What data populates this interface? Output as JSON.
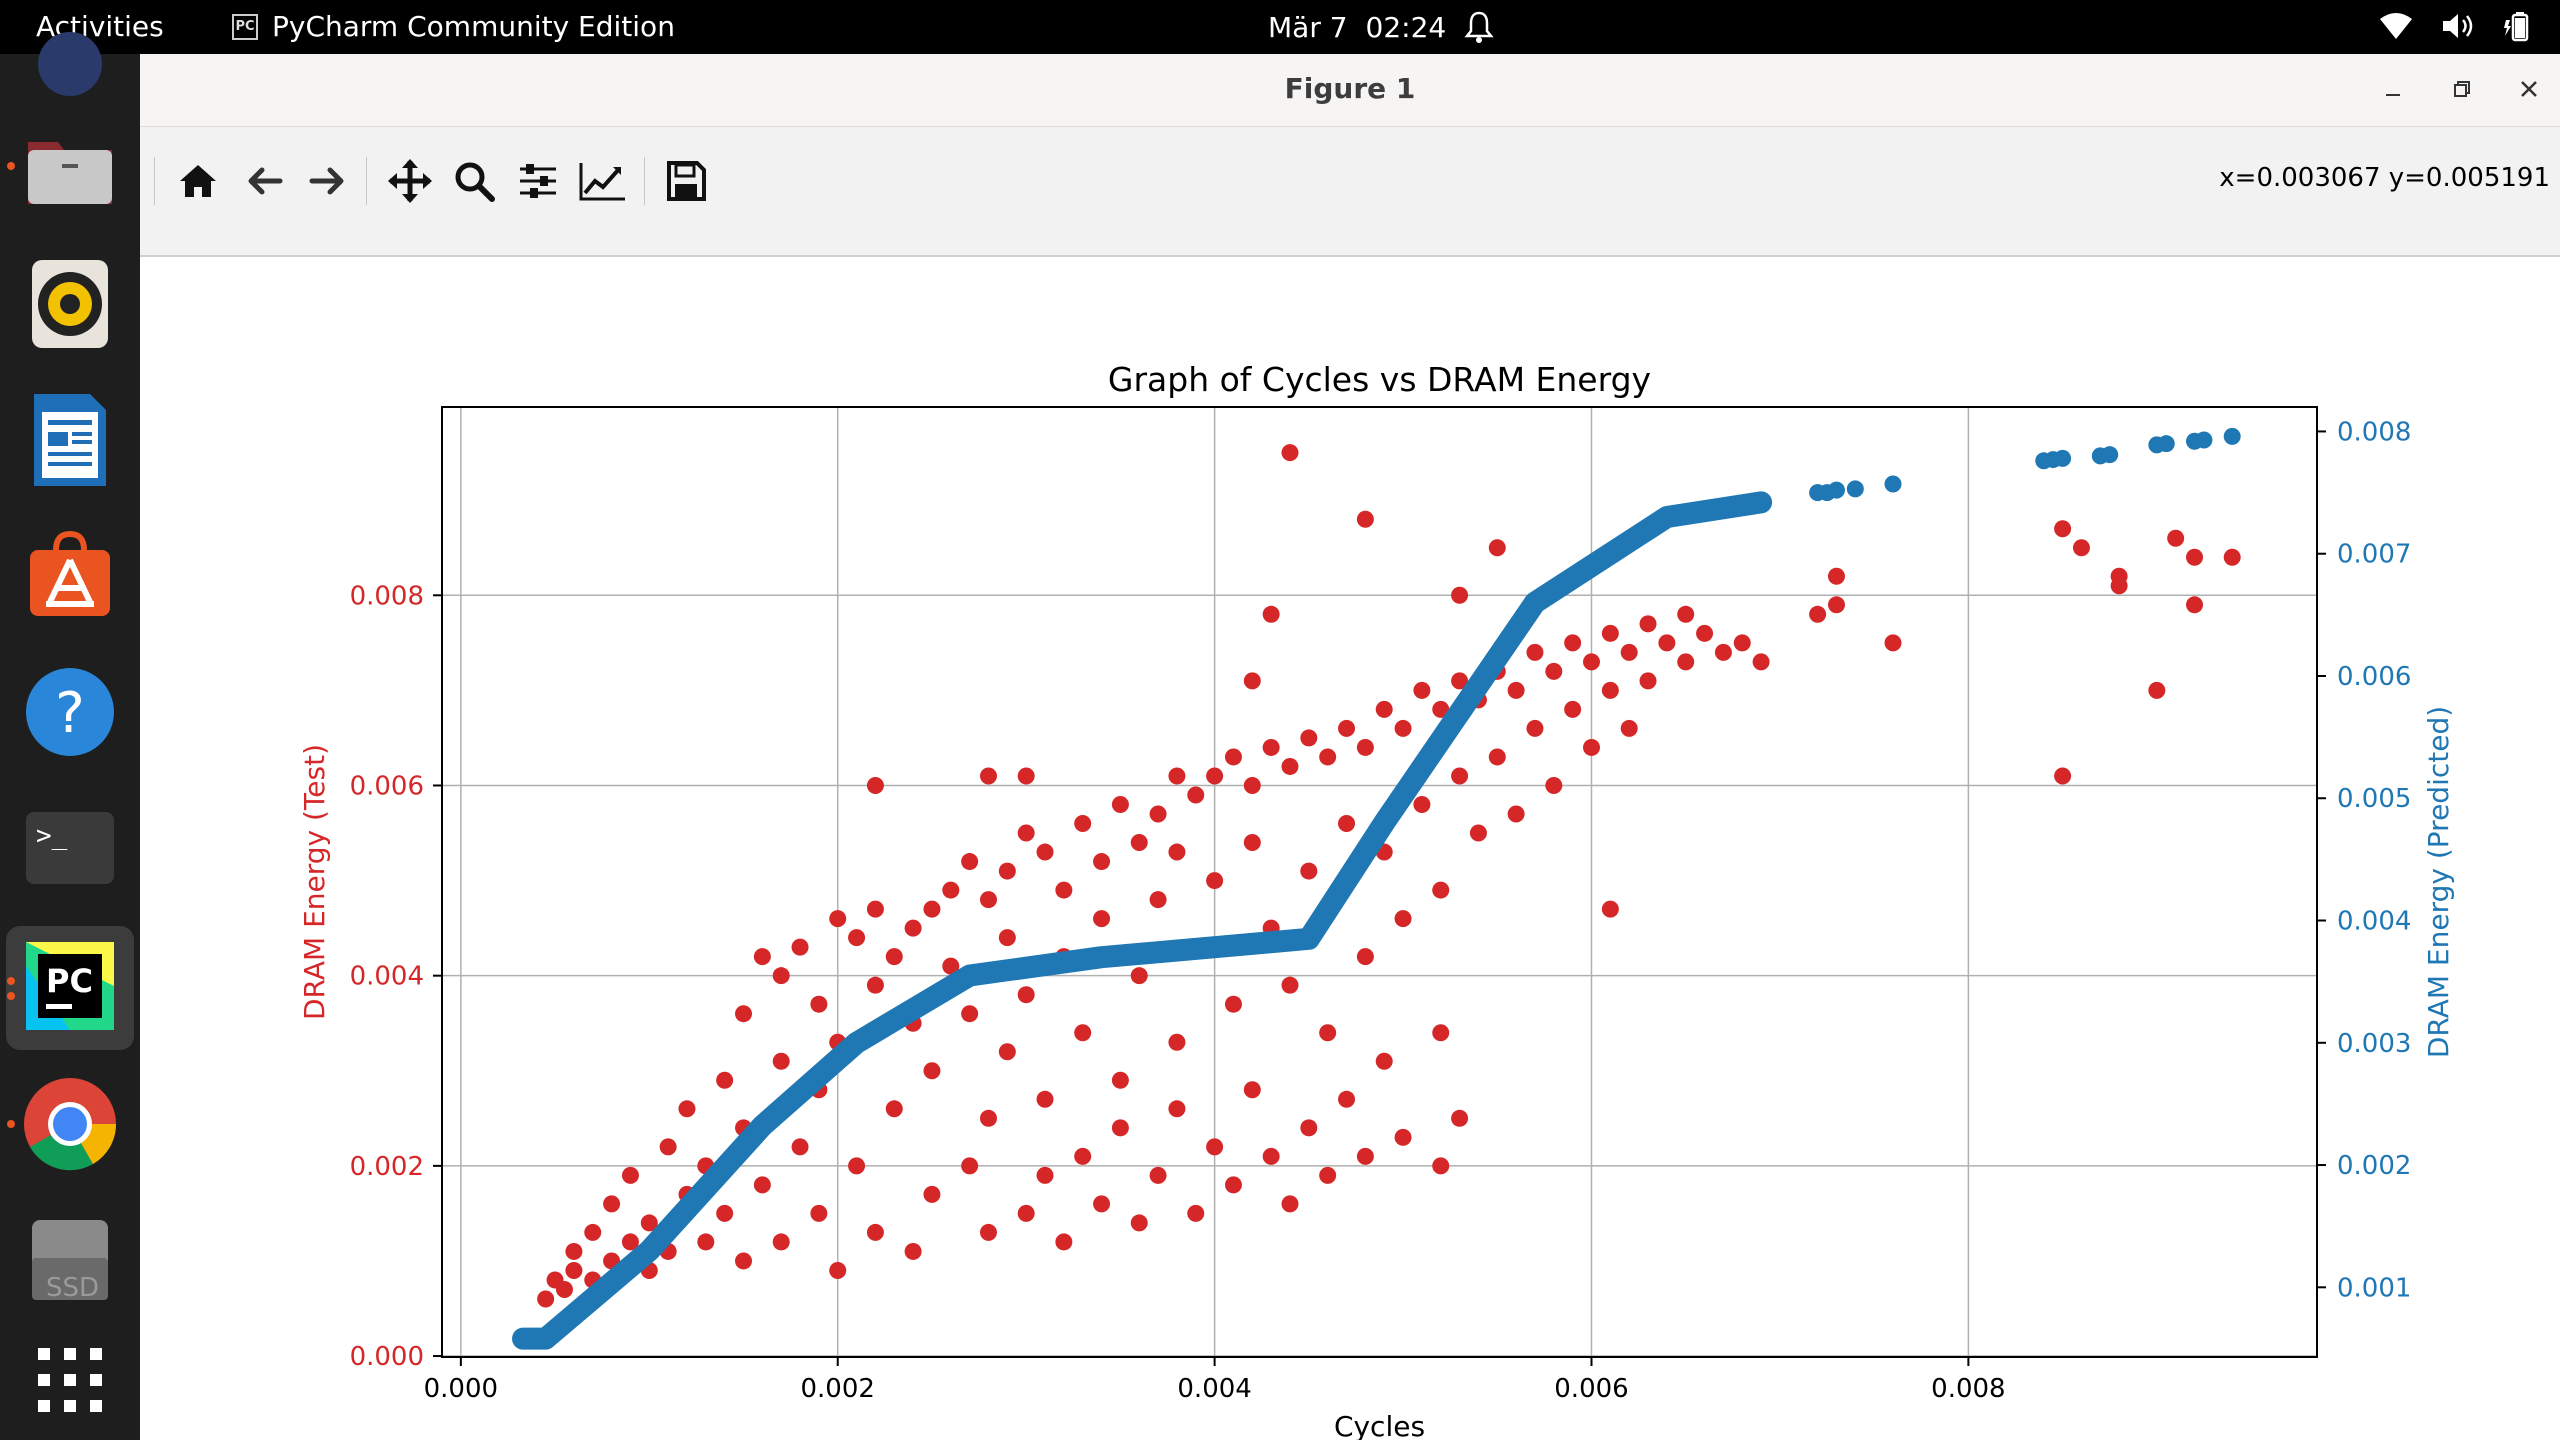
{
  "topbar": {
    "activities": "Activities",
    "app_name": "PyCharm Community Edition",
    "app_icon_text": "PC",
    "date": "Mär 7",
    "time": "02:24"
  },
  "dock": {
    "items": [
      {
        "name": "files",
        "icon": "folder-icon"
      },
      {
        "name": "rhythmbox",
        "icon": "speaker-icon"
      },
      {
        "name": "libreoffice-writer",
        "icon": "document-icon"
      },
      {
        "name": "app-center",
        "icon": "store-icon"
      },
      {
        "name": "help",
        "icon": "help-icon",
        "label": "?"
      },
      {
        "name": "terminal",
        "icon": "terminal-icon",
        "label": ">_"
      },
      {
        "name": "pycharm",
        "icon": "pycharm-icon",
        "label": "PC"
      },
      {
        "name": "chrome",
        "icon": "chrome-icon"
      },
      {
        "name": "ssd",
        "icon": "drive-icon",
        "label": "SSD"
      },
      {
        "name": "show-apps",
        "icon": "grid-icon"
      }
    ]
  },
  "window": {
    "title": "Figure 1",
    "coords": "x=0.003067 y=0.005191"
  },
  "toolbar": {
    "buttons": [
      "home-icon",
      "back-icon",
      "forward-icon",
      "pan-icon",
      "zoom-icon",
      "configure-icon",
      "edit-axis-icon",
      "save-icon"
    ]
  },
  "colors": {
    "test": "#d62728",
    "predicted": "#1f77b4",
    "grid": "#b0b0b0",
    "toolbar": "#f2f2f2",
    "dock": "#1e1e1e",
    "accent": "#e95420"
  },
  "chart_data": {
    "type": "scatter",
    "title": "Graph of Cycles vs DRAM Energy",
    "xlabel": "Cycles",
    "ylabel": "DRAM Energy (Test)",
    "ylabel_right": "DRAM Energy (Predicted)",
    "xlim": [
      -0.0001,
      0.00985
    ],
    "ylim": [
      -1e-05,
      0.00998
    ],
    "ylim_right": [
      0.00043,
      0.0082
    ],
    "xticks": [
      "0.000",
      "0.002",
      "0.004",
      "0.006",
      "0.008"
    ],
    "xtick_values": [
      0,
      0.002,
      0.004,
      0.006,
      0.008
    ],
    "yticks_left": [
      "0.000",
      "0.002",
      "0.004",
      "0.006",
      "0.008"
    ],
    "ytick_values_left": [
      0,
      0.002,
      0.004,
      0.006,
      0.008
    ],
    "yticks_right": [
      "0.001",
      "0.002",
      "0.003",
      "0.004",
      "0.005",
      "0.006",
      "0.007",
      "0.008"
    ],
    "ytick_values_right": [
      0.001,
      0.002,
      0.003,
      0.004,
      0.005,
      0.006,
      0.007,
      0.008
    ],
    "grid": true,
    "series": [
      {
        "name": "DRAM Energy (Test)",
        "axis": "left",
        "points": [
          [
            0.00045,
            0.0006
          ],
          [
            0.0005,
            0.0008
          ],
          [
            0.00055,
            0.0007
          ],
          [
            0.0006,
            0.0009
          ],
          [
            0.0006,
            0.0011
          ],
          [
            0.0007,
            0.0008
          ],
          [
            0.0007,
            0.0013
          ],
          [
            0.0008,
            0.001
          ],
          [
            0.0008,
            0.0016
          ],
          [
            0.0009,
            0.0012
          ],
          [
            0.0009,
            0.0019
          ],
          [
            0.001,
            0.0009
          ],
          [
            0.001,
            0.0014
          ],
          [
            0.0011,
            0.0022
          ],
          [
            0.0011,
            0.0011
          ],
          [
            0.0012,
            0.0017
          ],
          [
            0.0012,
            0.0026
          ],
          [
            0.0013,
            0.0012
          ],
          [
            0.0013,
            0.002
          ],
          [
            0.0014,
            0.0029
          ],
          [
            0.0014,
            0.0015
          ],
          [
            0.0015,
            0.0036
          ],
          [
            0.0015,
            0.0024
          ],
          [
            0.0015,
            0.001
          ],
          [
            0.0016,
            0.0042
          ],
          [
            0.0016,
            0.0018
          ],
          [
            0.0017,
            0.0031
          ],
          [
            0.0017,
            0.004
          ],
          [
            0.0017,
            0.0012
          ],
          [
            0.0018,
            0.0043
          ],
          [
            0.0018,
            0.0022
          ],
          [
            0.0019,
            0.0037
          ],
          [
            0.0019,
            0.0028
          ],
          [
            0.0019,
            0.0015
          ],
          [
            0.002,
            0.0046
          ],
          [
            0.002,
            0.0033
          ],
          [
            0.002,
            0.0009
          ],
          [
            0.0021,
            0.0044
          ],
          [
            0.0021,
            0.002
          ],
          [
            0.0022,
            0.0047
          ],
          [
            0.0022,
            0.0039
          ],
          [
            0.0022,
            0.0013
          ],
          [
            0.0023,
            0.0042
          ],
          [
            0.0023,
            0.0026
          ],
          [
            0.0024,
            0.0045
          ],
          [
            0.0024,
            0.0035
          ],
          [
            0.0024,
            0.0011
          ],
          [
            0.0025,
            0.0047
          ],
          [
            0.0025,
            0.003
          ],
          [
            0.0025,
            0.0017
          ],
          [
            0.0026,
            0.0049
          ],
          [
            0.0026,
            0.0041
          ],
          [
            0.0027,
            0.0052
          ],
          [
            0.0027,
            0.0036
          ],
          [
            0.0027,
            0.002
          ],
          [
            0.0028,
            0.0048
          ],
          [
            0.0028,
            0.0025
          ],
          [
            0.0028,
            0.0013
          ],
          [
            0.0029,
            0.0051
          ],
          [
            0.0029,
            0.0044
          ],
          [
            0.0029,
            0.0032
          ],
          [
            0.003,
            0.0055
          ],
          [
            0.003,
            0.0038
          ],
          [
            0.003,
            0.0015
          ],
          [
            0.0031,
            0.0053
          ],
          [
            0.0031,
            0.0027
          ],
          [
            0.0031,
            0.0019
          ],
          [
            0.0032,
            0.0049
          ],
          [
            0.0032,
            0.0042
          ],
          [
            0.0032,
            0.0012
          ],
          [
            0.0033,
            0.0056
          ],
          [
            0.0033,
            0.0034
          ],
          [
            0.0033,
            0.0021
          ],
          [
            0.0034,
            0.0052
          ],
          [
            0.0034,
            0.0046
          ],
          [
            0.0034,
            0.0016
          ],
          [
            0.0035,
            0.0058
          ],
          [
            0.0035,
            0.0029
          ],
          [
            0.0035,
            0.0024
          ],
          [
            0.0036,
            0.0054
          ],
          [
            0.0036,
            0.004
          ],
          [
            0.0036,
            0.0014
          ],
          [
            0.0037,
            0.0057
          ],
          [
            0.0037,
            0.0048
          ],
          [
            0.0037,
            0.0019
          ],
          [
            0.0038,
            0.0053
          ],
          [
            0.0038,
            0.0033
          ],
          [
            0.0038,
            0.0026
          ],
          [
            0.0039,
            0.0059
          ],
          [
            0.0039,
            0.0043
          ],
          [
            0.0039,
            0.0015
          ],
          [
            0.004,
            0.0061
          ],
          [
            0.004,
            0.005
          ],
          [
            0.004,
            0.0022
          ],
          [
            0.0041,
            0.0063
          ],
          [
            0.0041,
            0.0037
          ],
          [
            0.0041,
            0.0018
          ],
          [
            0.0042,
            0.006
          ],
          [
            0.0042,
            0.0054
          ],
          [
            0.0042,
            0.0028
          ],
          [
            0.0043,
            0.0064
          ],
          [
            0.0043,
            0.0045
          ],
          [
            0.0043,
            0.0021
          ],
          [
            0.0044,
            0.0062
          ],
          [
            0.0044,
            0.0039
          ],
          [
            0.0044,
            0.0016
          ],
          [
            0.0045,
            0.0065
          ],
          [
            0.0045,
            0.0051
          ],
          [
            0.0045,
            0.0024
          ],
          [
            0.0046,
            0.0063
          ],
          [
            0.0046,
            0.0034
          ],
          [
            0.0046,
            0.0019
          ],
          [
            0.0047,
            0.0066
          ],
          [
            0.0047,
            0.0056
          ],
          [
            0.0047,
            0.0027
          ],
          [
            0.0048,
            0.0064
          ],
          [
            0.0048,
            0.0042
          ],
          [
            0.0048,
            0.0021
          ],
          [
            0.0049,
            0.0068
          ],
          [
            0.0049,
            0.0053
          ],
          [
            0.0049,
            0.0031
          ],
          [
            0.005,
            0.0066
          ],
          [
            0.005,
            0.0046
          ],
          [
            0.005,
            0.0023
          ],
          [
            0.0051,
            0.007
          ],
          [
            0.0051,
            0.0058
          ],
          [
            0.0052,
            0.0068
          ],
          [
            0.0052,
            0.0049
          ],
          [
            0.0052,
            0.0034
          ],
          [
            0.0053,
            0.0071
          ],
          [
            0.0053,
            0.0061
          ],
          [
            0.0054,
            0.0069
          ],
          [
            0.0054,
            0.0055
          ],
          [
            0.0055,
            0.0072
          ],
          [
            0.0055,
            0.0063
          ],
          [
            0.0056,
            0.007
          ],
          [
            0.0056,
            0.0057
          ],
          [
            0.0057,
            0.0074
          ],
          [
            0.0057,
            0.0066
          ],
          [
            0.0058,
            0.0072
          ],
          [
            0.0058,
            0.006
          ],
          [
            0.0059,
            0.0075
          ],
          [
            0.0059,
            0.0068
          ],
          [
            0.006,
            0.0073
          ],
          [
            0.006,
            0.0064
          ],
          [
            0.0061,
            0.0076
          ],
          [
            0.0061,
            0.007
          ],
          [
            0.0062,
            0.0074
          ],
          [
            0.0062,
            0.0066
          ],
          [
            0.0063,
            0.0077
          ],
          [
            0.0063,
            0.0071
          ],
          [
            0.0064,
            0.0075
          ],
          [
            0.0065,
            0.0078
          ],
          [
            0.0065,
            0.0073
          ],
          [
            0.0066,
            0.0076
          ],
          [
            0.0067,
            0.0074
          ],
          [
            0.0068,
            0.0075
          ],
          [
            0.0069,
            0.0073
          ],
          [
            0.0044,
            0.0095
          ],
          [
            0.0048,
            0.0088
          ],
          [
            0.0055,
            0.0085
          ],
          [
            0.0043,
            0.0078
          ],
          [
            0.0038,
            0.0061
          ],
          [
            0.0022,
            0.006
          ],
          [
            0.0028,
            0.0061
          ],
          [
            0.003,
            0.0061
          ],
          [
            0.0053,
            0.008
          ],
          [
            0.0042,
            0.0071
          ],
          [
            0.0061,
            0.0047
          ],
          [
            0.0053,
            0.0025
          ],
          [
            0.0052,
            0.002
          ],
          [
            0.0072,
            0.0078
          ],
          [
            0.0073,
            0.0082
          ],
          [
            0.0073,
            0.0079
          ],
          [
            0.0076,
            0.0075
          ],
          [
            0.0085,
            0.0087
          ],
          [
            0.0085,
            0.0061
          ],
          [
            0.0086,
            0.0085
          ],
          [
            0.0088,
            0.0082
          ],
          [
            0.0088,
            0.0081
          ],
          [
            0.009,
            0.007
          ],
          [
            0.0091,
            0.0086
          ],
          [
            0.0092,
            0.0084
          ],
          [
            0.0092,
            0.0079
          ],
          [
            0.0094,
            0.0084
          ]
        ]
      },
      {
        "name": "DRAM Energy (Predicted)",
        "axis": "right",
        "line": [
          [
            0.00033,
            0.00058
          ],
          [
            0.00045,
            0.00058
          ],
          [
            0.001,
            0.0013
          ],
          [
            0.0016,
            0.00232
          ],
          [
            0.0021,
            0.003
          ],
          [
            0.0027,
            0.00355
          ],
          [
            0.0034,
            0.0037
          ],
          [
            0.0045,
            0.00385
          ],
          [
            0.0049,
            0.0048
          ],
          [
            0.0057,
            0.0066
          ],
          [
            0.0064,
            0.0073
          ],
          [
            0.0069,
            0.00742
          ]
        ],
        "points": [
          [
            0.0072,
            0.0075
          ],
          [
            0.00725,
            0.0075
          ],
          [
            0.0073,
            0.00752
          ],
          [
            0.0074,
            0.00753
          ],
          [
            0.0076,
            0.00757
          ],
          [
            0.0084,
            0.00776
          ],
          [
            0.00845,
            0.00777
          ],
          [
            0.0085,
            0.00778
          ],
          [
            0.0087,
            0.0078
          ],
          [
            0.00875,
            0.00781
          ],
          [
            0.009,
            0.00789
          ],
          [
            0.00905,
            0.0079
          ],
          [
            0.0092,
            0.00792
          ],
          [
            0.00925,
            0.00793
          ],
          [
            0.0094,
            0.00796
          ]
        ]
      }
    ]
  }
}
